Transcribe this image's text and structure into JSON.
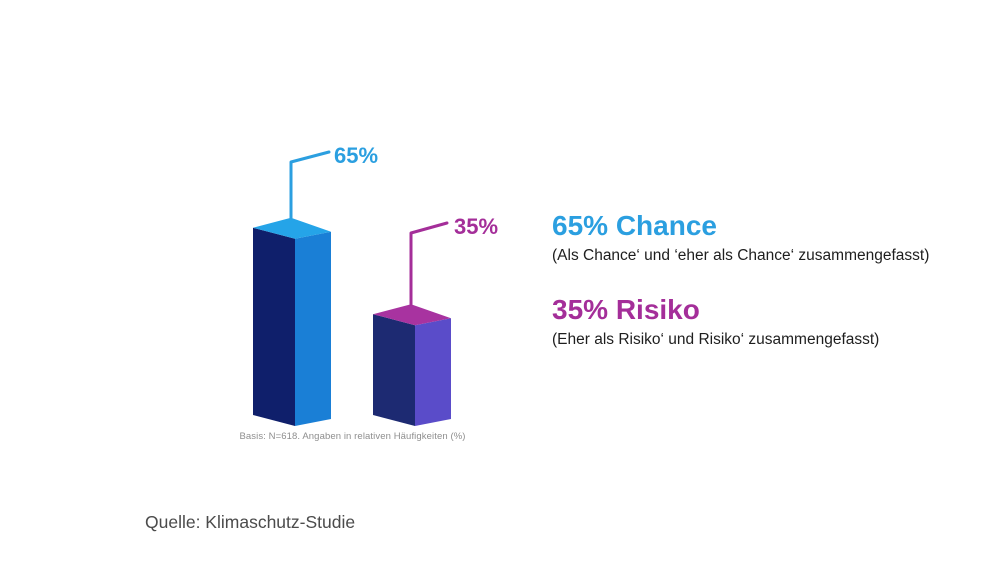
{
  "chart_data": {
    "type": "bar",
    "style": "3d-isometric",
    "categories": [
      "Chance",
      "Risiko"
    ],
    "values": [
      65,
      35
    ],
    "unit": "%",
    "data_labels": [
      "65%",
      "35%"
    ],
    "bar_colors": [
      {
        "top": "#25a4e8",
        "left": "#0f1f6b",
        "right": "#1a7fd6",
        "line": "#2b9fe0"
      },
      {
        "top": "#a833a0",
        "left": "#1d2a72",
        "right": "#5a4cc9",
        "line": "#a42e99"
      }
    ],
    "grid": false,
    "legend_position": "right",
    "note": "Basis: N=618. Angaben in relativen Häufigkeiten (%)"
  },
  "annotations": [
    {
      "heading": "65% Chance",
      "sub": "(Als Chance‘ und ‘eher als Chance‘ zusammengefasst)",
      "color": "#2b9fe0"
    },
    {
      "heading": "35% Risiko",
      "sub": "(Eher als Risiko‘ und Risiko‘ zusammengefasst)",
      "color": "#a42e99"
    }
  ],
  "footer": {
    "source": "Quelle: Klimaschutz-Studie"
  }
}
